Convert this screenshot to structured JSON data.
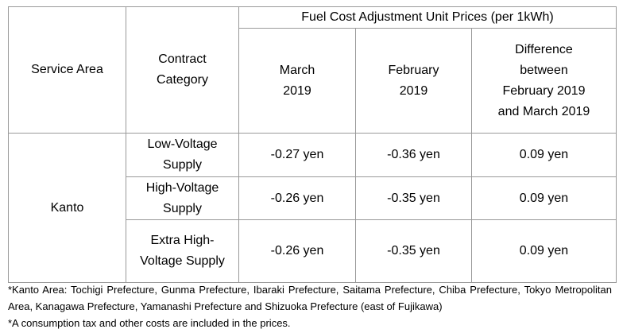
{
  "header": {
    "group_title": "Fuel Cost Adjustment Unit Prices (per 1kWh)",
    "columns": [
      "Service Area",
      "Contract Category",
      "March 2019",
      "February 2019",
      "Difference between February 2019 and March 2019"
    ]
  },
  "table": {
    "area": "Kanto",
    "rows": [
      [
        "Low-Voltage Supply",
        "-0.27 yen",
        "-0.36 yen",
        "0.09 yen"
      ],
      [
        "High-Voltage Supply",
        "-0.26 yen",
        "-0.35 yen",
        "0.09 yen"
      ],
      [
        "Extra High-Voltage Supply",
        "-0.26 yen",
        "-0.35 yen",
        "0.09 yen"
      ]
    ]
  },
  "notes": [
    "*Kanto Area: Tochigi Prefecture, Gunma Prefecture, Ibaraki Prefecture, Saitama Prefecture, Chiba Prefecture, Tokyo Metropolitan Area, Kanagawa Prefecture, Yamanashi Prefecture and Shizuoka Prefecture (east of Fujikawa)",
    "*A consumption tax and other costs are included in the prices."
  ]
}
